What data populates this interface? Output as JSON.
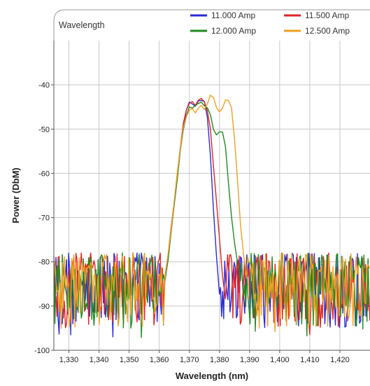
{
  "chart_data": {
    "type": "line",
    "title": "Wavelength",
    "xlabel": "Wavelength (nm)",
    "ylabel": "Power (DbM)",
    "xlim": [
      1325,
      1430
    ],
    "ylim": [
      -100,
      -30
    ],
    "x_ticks": [
      1330,
      1340,
      1350,
      1360,
      1370,
      1380,
      1390,
      1400,
      1410,
      1420
    ],
    "x_tick_labels": [
      "1,330",
      "1,340",
      "1,350",
      "1,360",
      "1,370",
      "1,380",
      "1,390",
      "1,400",
      "1,410",
      "1,420"
    ],
    "y_ticks": [
      -100,
      -90,
      -80,
      -70,
      -60,
      -50,
      -40
    ],
    "y_tick_labels": [
      "-100",
      "-90",
      "-80",
      "-70",
      "-60",
      "-50",
      "-40"
    ],
    "grid": true,
    "legend_position": "top-right",
    "noise_floor": [
      -98,
      -78
    ],
    "series": [
      {
        "name": "11.000 Amp",
        "color": "#2b2bd6",
        "x": [
          1362,
          1363,
          1364,
          1365,
          1366,
          1367,
          1368,
          1369,
          1370,
          1371,
          1372,
          1373,
          1374,
          1375,
          1376,
          1377,
          1378,
          1379,
          1380
        ],
        "y": [
          -84,
          -78,
          -72,
          -67,
          -61,
          -55,
          -50,
          -46,
          -44,
          -44.5,
          -45,
          -44,
          -43.5,
          -44,
          -47,
          -56,
          -68,
          -79,
          -87
        ]
      },
      {
        "name": "11.500 Amp",
        "color": "#e02424",
        "x": [
          1362,
          1363,
          1364,
          1365,
          1366,
          1367,
          1368,
          1369,
          1370,
          1371,
          1372,
          1373,
          1374,
          1375,
          1376,
          1377,
          1378,
          1379,
          1380,
          1381,
          1382
        ],
        "y": [
          -84,
          -78,
          -72,
          -66,
          -60,
          -54,
          -49,
          -46,
          -44,
          -44,
          -44.5,
          -43.5,
          -43,
          -43.5,
          -46,
          -50,
          -58,
          -66,
          -75,
          -83,
          -88
        ]
      },
      {
        "name": "12.000 Amp",
        "color": "#1f8a1f",
        "x": [
          1362,
          1363,
          1364,
          1365,
          1366,
          1367,
          1368,
          1369,
          1370,
          1371,
          1372,
          1373,
          1374,
          1375,
          1376,
          1377,
          1378,
          1379,
          1380,
          1381,
          1382,
          1383,
          1384,
          1385,
          1386,
          1387
        ],
        "y": [
          -84,
          -79,
          -73,
          -67,
          -61,
          -55,
          -50,
          -47,
          -45,
          -45,
          -45,
          -44.5,
          -44,
          -44.5,
          -45,
          -47,
          -50,
          -51,
          -50.5,
          -51,
          -54,
          -62,
          -70,
          -76,
          -80,
          -84
        ]
      },
      {
        "name": "12.500 Amp",
        "color": "#f0a020",
        "x": [
          1362,
          1363,
          1364,
          1365,
          1366,
          1367,
          1368,
          1369,
          1370,
          1371,
          1372,
          1373,
          1374,
          1375,
          1376,
          1377,
          1378,
          1379,
          1380,
          1381,
          1382,
          1383,
          1384,
          1385,
          1386,
          1387,
          1388,
          1389
        ],
        "y": [
          -83,
          -78,
          -72,
          -66,
          -60,
          -54,
          -50,
          -47,
          -46,
          -45.5,
          -46,
          -45.5,
          -45,
          -45.5,
          -44,
          -42.5,
          -42.5,
          -45,
          -46,
          -45.5,
          -43.5,
          -43.5,
          -45,
          -52,
          -62,
          -72,
          -78,
          -84
        ]
      }
    ]
  }
}
